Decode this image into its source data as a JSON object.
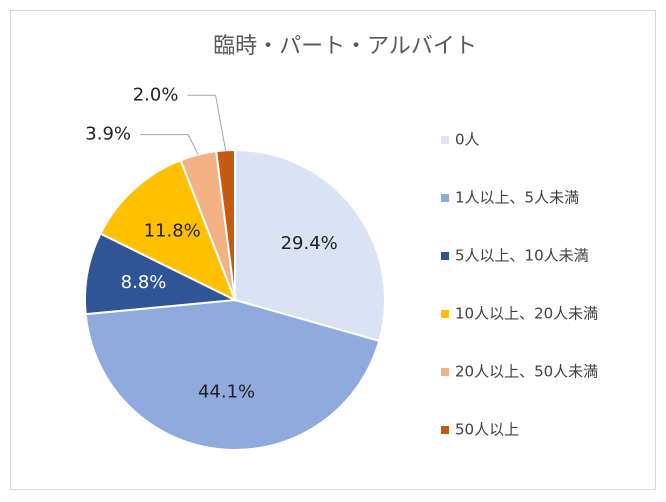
{
  "chart_data": {
    "type": "pie",
    "title": "臨時・パート・アルバイト",
    "categories": [
      "0人",
      "1人以上、5人未満",
      "5人以上、10人未満",
      "10人以上、20人未満",
      "20人以上、50人未満",
      "50人以上"
    ],
    "values": [
      29.4,
      44.1,
      8.8,
      11.8,
      3.9,
      2.0
    ],
    "value_labels": [
      "29.4%",
      "44.1%",
      "8.8%",
      "11.8%",
      "3.9%",
      "2.0%"
    ],
    "colors": [
      "#dae3f3",
      "#8faadc",
      "#2f5597",
      "#ffc000",
      "#f4b183",
      "#c55a11"
    ],
    "legend": "right"
  }
}
